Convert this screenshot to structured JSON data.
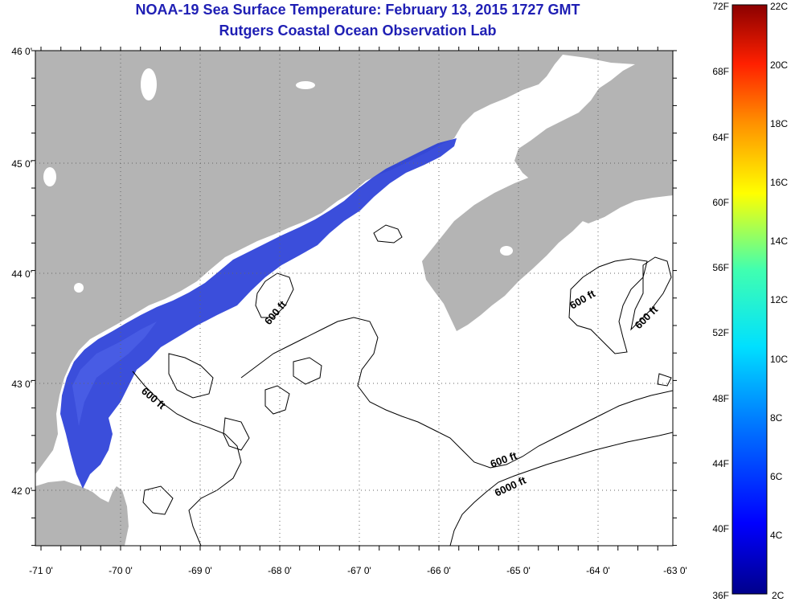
{
  "title": {
    "line1": "NOAA-19 Sea Surface Temperature:  February 13, 2015 1727 GMT",
    "line2": "Rutgers Coastal Ocean Observation Lab"
  },
  "colors": {
    "title": "#1f1fb4",
    "land": "#b4b4b4",
    "ocean": "#ffffff",
    "cold_water": "#2a3fd8",
    "contour": "#000000"
  },
  "axes": {
    "lat_labels": [
      "46 0'",
      "45 0'",
      "44 0'",
      "43 0'",
      "42 0'"
    ],
    "lon_labels": [
      "-71 0'",
      "-70 0'",
      "-69 0'",
      "-68 0'",
      "-67 0'",
      "-66 0'",
      "-65 0'",
      "-64 0'",
      "-63 0'"
    ],
    "lat_range": [
      41.5,
      46.0
    ],
    "lon_range": [
      -71.0,
      -63.0
    ],
    "grid": "dotted"
  },
  "contour_labels": [
    "600 ft",
    "600 ft",
    "600 ft",
    "600 ft",
    "600 ft",
    "6000 ft"
  ],
  "colorbar": {
    "fahrenheit_labels": [
      "72F",
      "68F",
      "64F",
      "60F",
      "56F",
      "52F",
      "48F",
      "44F",
      "40F",
      "36F"
    ],
    "celsius_labels": [
      "22C",
      "20C",
      "18C",
      "16C",
      "14C",
      "12C",
      "10C",
      "8C",
      "6C",
      "4C",
      "2C"
    ],
    "range_c": [
      2,
      22
    ]
  }
}
